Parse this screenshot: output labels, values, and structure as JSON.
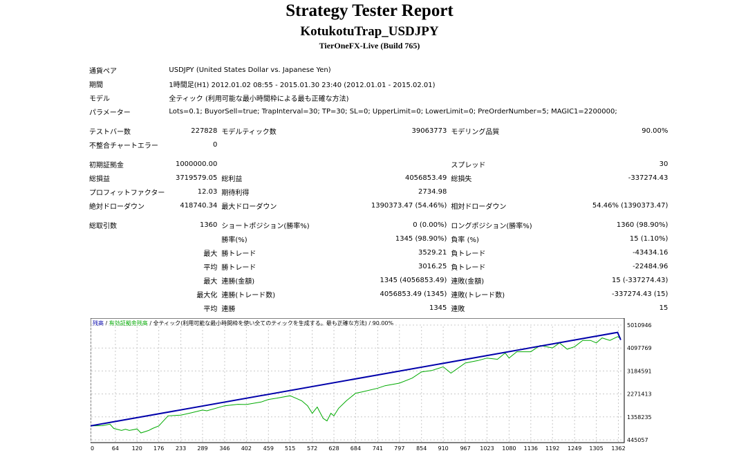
{
  "header": {
    "title": "Strategy Tester Report",
    "ea_name": "KotukotuTrap_USDJPY",
    "server": "TierOneFX-Live (Build 765)"
  },
  "settings": {
    "symbol_label": "通貨ペア",
    "symbol_value": "USDJPY (United States Dollar vs. Japanese Yen)",
    "period_label": "期間",
    "period_value": "1時間足(H1) 2012.01.02 08:55 - 2015.01.30 23:40 (2012.01.01 - 2015.02.01)",
    "model_label": "モデル",
    "model_value": "全ティック (利用可能な最小時間枠による最も正確な方法)",
    "params_label": "パラメーター",
    "params_value": "Lots=0.1; BuyorSell=true; TrapInterval=30; TP=30; SL=0; UpperLimit=0; LowerLimit=0; PreOrderNumber=5; MAGIC1=2200000;"
  },
  "quality": {
    "bars_label": "テストバー数",
    "bars_value": "227828",
    "ticks_label": "モデルティック数",
    "ticks_value": "39063773",
    "modeling_label": "モデリング品質",
    "modeling_value": "90.00%",
    "errors_label": "不整合チャートエラー",
    "errors_value": "0"
  },
  "results": {
    "deposit_label": "初期証拠金",
    "deposit_value": "1000000.00",
    "spread_label": "スプレッド",
    "spread_value": "30",
    "net_label": "総損益",
    "net_value": "3719579.05",
    "gross_profit_label": "総利益",
    "gross_profit_value": "4056853.49",
    "gross_loss_label": "総損失",
    "gross_loss_value": "-337274.43",
    "pf_label": "プロフィットファクター",
    "pf_value": "12.03",
    "payoff_label": "期待利得",
    "payoff_value": "2734.98",
    "abs_dd_label": "絶対ドローダウン",
    "abs_dd_value": "418740.34",
    "max_dd_label": "最大ドローダウン",
    "max_dd_value": "1390373.47 (54.46%)",
    "rel_dd_label": "相対ドローダウン",
    "rel_dd_value": "54.46% (1390373.47)"
  },
  "trades": {
    "total_label": "総取引数",
    "total_value": "1360",
    "short_label": "ショートポジション(勝率%)",
    "short_value": "0 (0.00%)",
    "long_label": "ロングポジション(勝率%)",
    "long_value": "1360 (98.90%)",
    "win_label": "勝率(%)",
    "win_value": "1345 (98.90%)",
    "loss_label": "負率 (%)",
    "loss_value": "15 (1.10%)",
    "largest_label": "最大",
    "largest_win_label": "勝トレード",
    "largest_win_value": "3529.21",
    "largest_loss_label": "負トレード",
    "largest_loss_value": "-43434.16",
    "average_label": "平均",
    "average_win_label": "勝トレード",
    "average_win_value": "3016.25",
    "average_loss_label": "負トレード",
    "average_loss_value": "-22484.96",
    "max_label": "最大",
    "max_cons_wins_label": "連勝(金額)",
    "max_cons_wins_value": "1345 (4056853.49)",
    "max_cons_losses_label": "連敗(金額)",
    "max_cons_losses_value": "15 (-337274.43)",
    "maximal_label": "最大化",
    "maximal_wins_label": "連勝(トレード数)",
    "maximal_wins_value": "4056853.49 (1345)",
    "maximal_losses_label": "連敗(トレード数)",
    "maximal_losses_value": "-337274.43 (15)",
    "avg_cons_label": "平均",
    "avg_cons_wins_label": "連勝",
    "avg_cons_wins_value": "1345",
    "avg_cons_losses_label": "連敗",
    "avg_cons_losses_value": "15"
  },
  "chart_data": {
    "type": "line",
    "legend": {
      "balance": "残高",
      "sep1": " / ",
      "equity": "有効証拠金残高",
      "sep2": " / ",
      "rest": "全ティック(利用可能な最小時間枠を使い全てのティックを生成する。最も正確な方法) / 90.00%"
    },
    "colors": {
      "balance": "#0000aa",
      "equity": "#00aa00",
      "grid": "#c8c8c8"
    },
    "x_ticks": [
      "0",
      "64",
      "120",
      "176",
      "233",
      "289",
      "346",
      "402",
      "459",
      "515",
      "572",
      "628",
      "684",
      "741",
      "797",
      "854",
      "910",
      "967",
      "1023",
      "1080",
      "1136",
      "1192",
      "1249",
      "1305",
      "1362"
    ],
    "y_ticks": [
      "5010946",
      "4097769",
      "3184591",
      "2271413",
      "1358235",
      "445057"
    ],
    "xlim": [
      0,
      1370
    ],
    "ylim": [
      445057,
      5010946
    ],
    "series": [
      {
        "name": "残高",
        "x": [
          0,
          1360,
          1368
        ],
        "y": [
          1000000,
          4719579,
          4420000
        ]
      },
      {
        "name": "有効証拠金残高",
        "x": [
          0,
          30,
          50,
          60,
          80,
          90,
          100,
          120,
          130,
          150,
          160,
          176,
          200,
          233,
          260,
          289,
          300,
          346,
          380,
          402,
          440,
          459,
          480,
          515,
          530,
          545,
          560,
          572,
          585,
          590,
          600,
          610,
          620,
          628,
          640,
          660,
          684,
          700,
          741,
          760,
          797,
          830,
          854,
          880,
          910,
          930,
          967,
          1000,
          1023,
          1050,
          1070,
          1080,
          1100,
          1136,
          1160,
          1192,
          1210,
          1230,
          1249,
          1270,
          1290,
          1305,
          1320,
          1340,
          1360,
          1368
        ],
        "y": [
          1000000,
          1010000,
          1070000,
          900000,
          820000,
          870000,
          820000,
          880000,
          720000,
          820000,
          900000,
          1000000,
          1400000,
          1430000,
          1520000,
          1630000,
          1600000,
          1800000,
          1860000,
          1850000,
          1950000,
          2050000,
          2100000,
          2200000,
          2100000,
          2000000,
          1800000,
          1500000,
          1750000,
          1600000,
          1300000,
          1200000,
          1500000,
          1400000,
          1700000,
          2000000,
          2300000,
          2350000,
          2500000,
          2600000,
          2700000,
          2900000,
          3150000,
          3200000,
          3350000,
          3100000,
          3500000,
          3600000,
          3700000,
          3650000,
          3900000,
          3700000,
          3950000,
          3950000,
          4200000,
          4100000,
          4300000,
          4050000,
          4150000,
          4400000,
          4400000,
          4300000,
          4500000,
          4400000,
          4550000,
          4500000
        ]
      }
    ]
  }
}
